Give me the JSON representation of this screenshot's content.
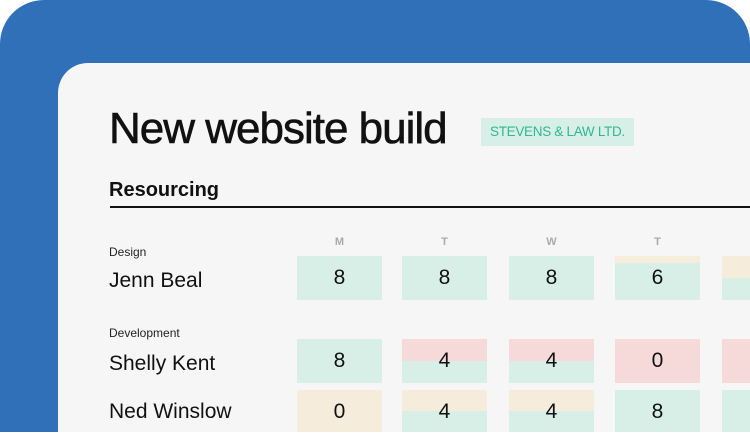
{
  "header": {
    "title": "New website build",
    "client_badge": "STEVENS & LAW LTD."
  },
  "section": {
    "title": "Resourcing"
  },
  "days": [
    "M",
    "T",
    "W",
    "T",
    ""
  ],
  "colors": {
    "background": "#2f70b8",
    "available": "#d8efe8",
    "over": "#f6dada",
    "partial": "#f5ecdc",
    "badge_text": "#2fb890"
  },
  "groups": [
    {
      "label": "Design",
      "people": [
        {
          "name": "Jenn Beal",
          "cells": [
            {
              "value": "8",
              "top": "available",
              "top_fraction": 0
            },
            {
              "value": "8",
              "top": "available",
              "top_fraction": 0
            },
            {
              "value": "8",
              "top": "available",
              "top_fraction": 0
            },
            {
              "value": "6",
              "top": "partial",
              "top_fraction": 0.15
            },
            {
              "value": null,
              "top": "partial",
              "top_fraction": 0.5
            }
          ]
        }
      ]
    },
    {
      "label": "Development",
      "people": [
        {
          "name": "Shelly Kent",
          "cells": [
            {
              "value": "8",
              "top": "available",
              "top_fraction": 0
            },
            {
              "value": "4",
              "top": "over",
              "top_fraction": 0.5
            },
            {
              "value": "4",
              "top": "over",
              "top_fraction": 0.5
            },
            {
              "value": "0",
              "top": "over",
              "top_fraction": 1
            },
            {
              "value": null,
              "top": "over",
              "top_fraction": 1
            }
          ]
        },
        {
          "name": "Ned Winslow",
          "cells": [
            {
              "value": "0",
              "top": "partial",
              "top_fraction": 1
            },
            {
              "value": "4",
              "top": "partial",
              "top_fraction": 0.5
            },
            {
              "value": "4",
              "top": "partial",
              "top_fraction": 0.5
            },
            {
              "value": "8",
              "top": "available",
              "top_fraction": 0
            },
            {
              "value": null,
              "top": "available",
              "top_fraction": 0
            }
          ]
        }
      ]
    }
  ]
}
